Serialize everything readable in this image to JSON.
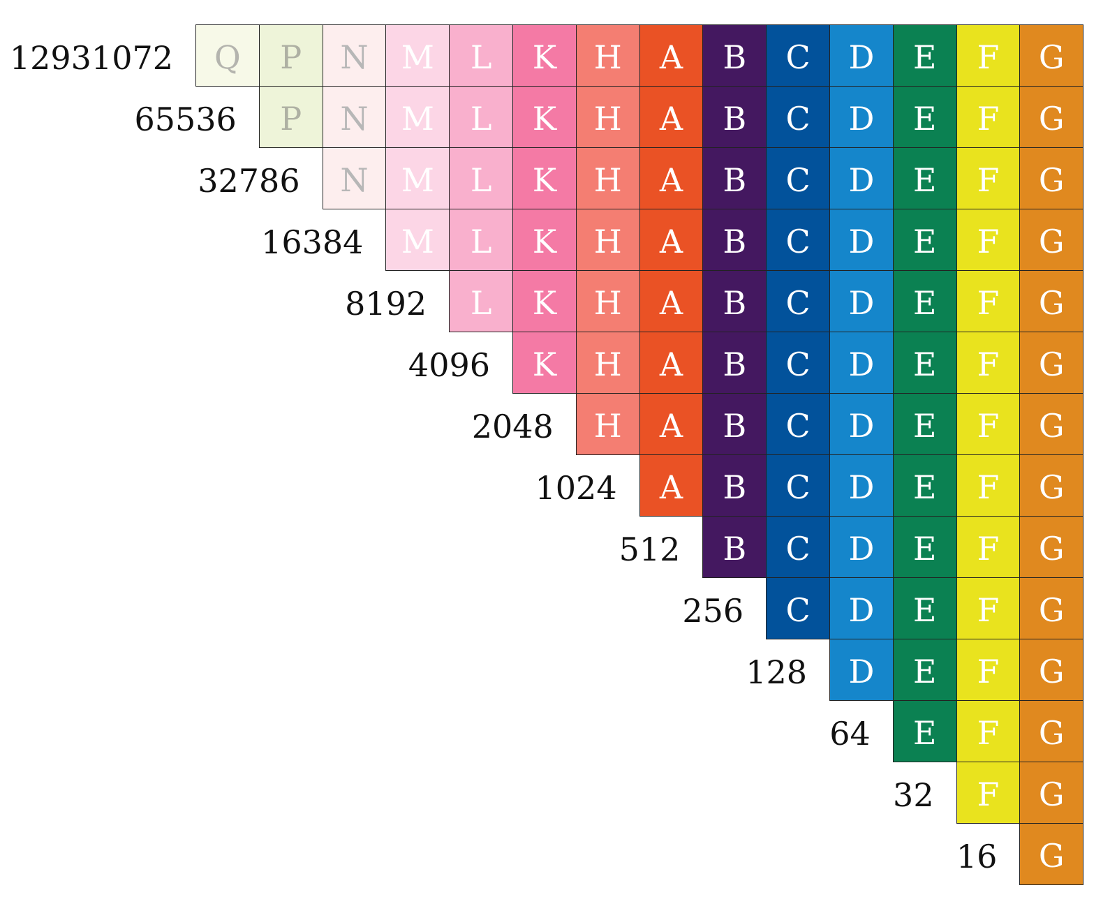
{
  "columns": [
    {
      "letter": "Q",
      "bg": "#f7f9e8",
      "fg": "#b4b4ae"
    },
    {
      "letter": "P",
      "bg": "#eef4d9",
      "fg": "#aeb0a3"
    },
    {
      "letter": "N",
      "bg": "#fdeeee",
      "fg": "#b7b7b7"
    },
    {
      "letter": "M",
      "bg": "#fcd6e6",
      "fg": "#ffffff"
    },
    {
      "letter": "L",
      "bg": "#f9b0cd",
      "fg": "#ffffff"
    },
    {
      "letter": "K",
      "bg": "#f47aa5",
      "fg": "#ffffff"
    },
    {
      "letter": "H",
      "bg": "#f47e72",
      "fg": "#ffffff"
    },
    {
      "letter": "A",
      "bg": "#ea5225",
      "fg": "#ffffff"
    },
    {
      "letter": "B",
      "bg": "#441860",
      "fg": "#ffffff"
    },
    {
      "letter": "C",
      "bg": "#02529b",
      "fg": "#ffffff"
    },
    {
      "letter": "D",
      "bg": "#1586cb",
      "fg": "#ffffff"
    },
    {
      "letter": "E",
      "bg": "#0b8152",
      "fg": "#ffffff"
    },
    {
      "letter": "F",
      "bg": "#e9e31e",
      "fg": "#ffffff"
    },
    {
      "letter": "G",
      "bg": "#e0891f",
      "fg": "#ffffff"
    }
  ],
  "rows": [
    {
      "label": "12931072"
    },
    {
      "label": "65536"
    },
    {
      "label": "32786"
    },
    {
      "label": "16384"
    },
    {
      "label": "8192"
    },
    {
      "label": "4096"
    },
    {
      "label": "2048"
    },
    {
      "label": "1024"
    },
    {
      "label": "512"
    },
    {
      "label": "256"
    },
    {
      "label": "128"
    },
    {
      "label": "64"
    },
    {
      "label": "32"
    },
    {
      "label": "16"
    }
  ]
}
